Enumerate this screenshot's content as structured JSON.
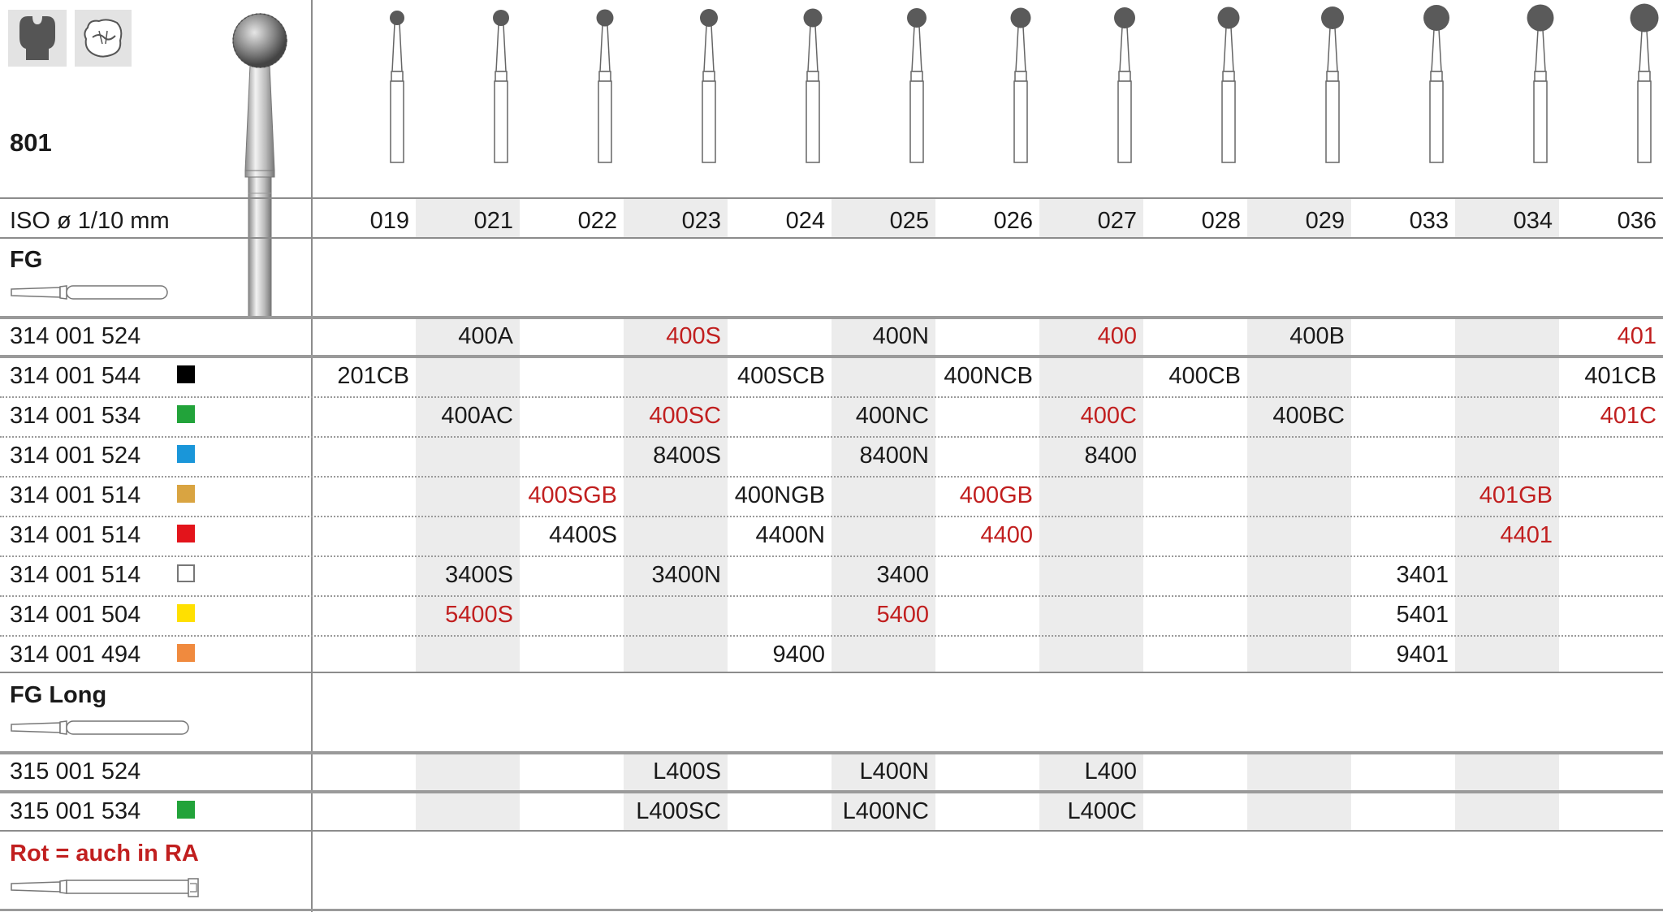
{
  "header": {
    "product_code": "801",
    "iso_label": "ISO ø 1/10 mm",
    "icons": [
      "tooth-crown-icon",
      "occlusal-cavity-icon"
    ]
  },
  "sizes": [
    "019",
    "021",
    "022",
    "023",
    "024",
    "025",
    "026",
    "027",
    "028",
    "029",
    "033",
    "034",
    "036"
  ],
  "sections": {
    "fg": "FG",
    "fg_long": "FG Long",
    "legend": "Rot = auch in RA"
  },
  "colors": {
    "red_text": "#c11f1f",
    "shade": "#ececec"
  },
  "rows": [
    {
      "ref": "314 001 524",
      "swatch": null,
      "cells": [
        null,
        {
          "t": "400A"
        },
        null,
        {
          "t": "400S",
          "red": true
        },
        null,
        {
          "t": "400N"
        },
        null,
        {
          "t": "400",
          "red": true
        },
        null,
        {
          "t": "400B"
        },
        null,
        null,
        {
          "t": "401",
          "red": true
        }
      ]
    },
    {
      "ref": "314 001 544",
      "swatch": "#000000",
      "cells": [
        {
          "t": "201CB"
        },
        null,
        null,
        null,
        {
          "t": "400SCB"
        },
        null,
        {
          "t": "400NCB"
        },
        null,
        {
          "t": "400CB"
        },
        null,
        null,
        null,
        {
          "t": "401CB"
        }
      ]
    },
    {
      "ref": "314 001 534",
      "swatch": "#22a33a",
      "cells": [
        null,
        {
          "t": "400AC"
        },
        null,
        {
          "t": "400SC",
          "red": true
        },
        null,
        {
          "t": "400NC"
        },
        null,
        {
          "t": "400C",
          "red": true
        },
        null,
        {
          "t": "400BC"
        },
        null,
        null,
        {
          "t": "401C",
          "red": true
        }
      ]
    },
    {
      "ref": "314 001 524",
      "swatch": "#1a96d9",
      "cells": [
        null,
        null,
        null,
        {
          "t": "8400S"
        },
        null,
        {
          "t": "8400N"
        },
        null,
        {
          "t": "8400"
        },
        null,
        null,
        null,
        null,
        null
      ]
    },
    {
      "ref": "314 001 514",
      "swatch": "#d9a441",
      "cells": [
        null,
        null,
        {
          "t": "400SGB",
          "red": true
        },
        null,
        {
          "t": "400NGB"
        },
        null,
        {
          "t": "400GB",
          "red": true
        },
        null,
        null,
        null,
        null,
        {
          "t": "401GB",
          "red": true
        },
        null
      ]
    },
    {
      "ref": "314 001 514",
      "swatch": "#e3141b",
      "cells": [
        null,
        null,
        {
          "t": "4400S"
        },
        null,
        {
          "t": "4400N"
        },
        null,
        {
          "t": "4400",
          "red": true
        },
        null,
        null,
        null,
        null,
        {
          "t": "4401",
          "red": true
        },
        null
      ]
    },
    {
      "ref": "314 001 514",
      "swatch": "#ffffff",
      "cells": [
        null,
        {
          "t": "3400S"
        },
        null,
        {
          "t": "3400N"
        },
        null,
        {
          "t": "3400"
        },
        null,
        null,
        null,
        null,
        {
          "t": "3401"
        },
        null,
        null
      ]
    },
    {
      "ref": "314 001 504",
      "swatch": "#ffe000",
      "cells": [
        null,
        {
          "t": "5400S",
          "red": true
        },
        null,
        null,
        null,
        {
          "t": "5400",
          "red": true
        },
        null,
        null,
        null,
        null,
        {
          "t": "5401"
        },
        null,
        null
      ]
    },
    {
      "ref": "314 001 494",
      "swatch": "#f08a3e",
      "cells": [
        null,
        null,
        null,
        null,
        {
          "t": "9400"
        },
        null,
        null,
        null,
        null,
        null,
        {
          "t": "9401"
        },
        null,
        null
      ]
    }
  ],
  "long_rows": [
    {
      "ref": "315 001 524",
      "swatch": null,
      "cells": [
        null,
        null,
        null,
        {
          "t": "L400S"
        },
        null,
        {
          "t": "L400N"
        },
        null,
        {
          "t": "L400"
        },
        null,
        null,
        null,
        null,
        null
      ]
    },
    {
      "ref": "315 001 534",
      "swatch": "#22a33a",
      "cells": [
        null,
        null,
        null,
        {
          "t": "L400SC"
        },
        null,
        {
          "t": "L400NC"
        },
        null,
        {
          "t": "L400C"
        },
        null,
        null,
        null,
        null,
        null
      ]
    }
  ]
}
